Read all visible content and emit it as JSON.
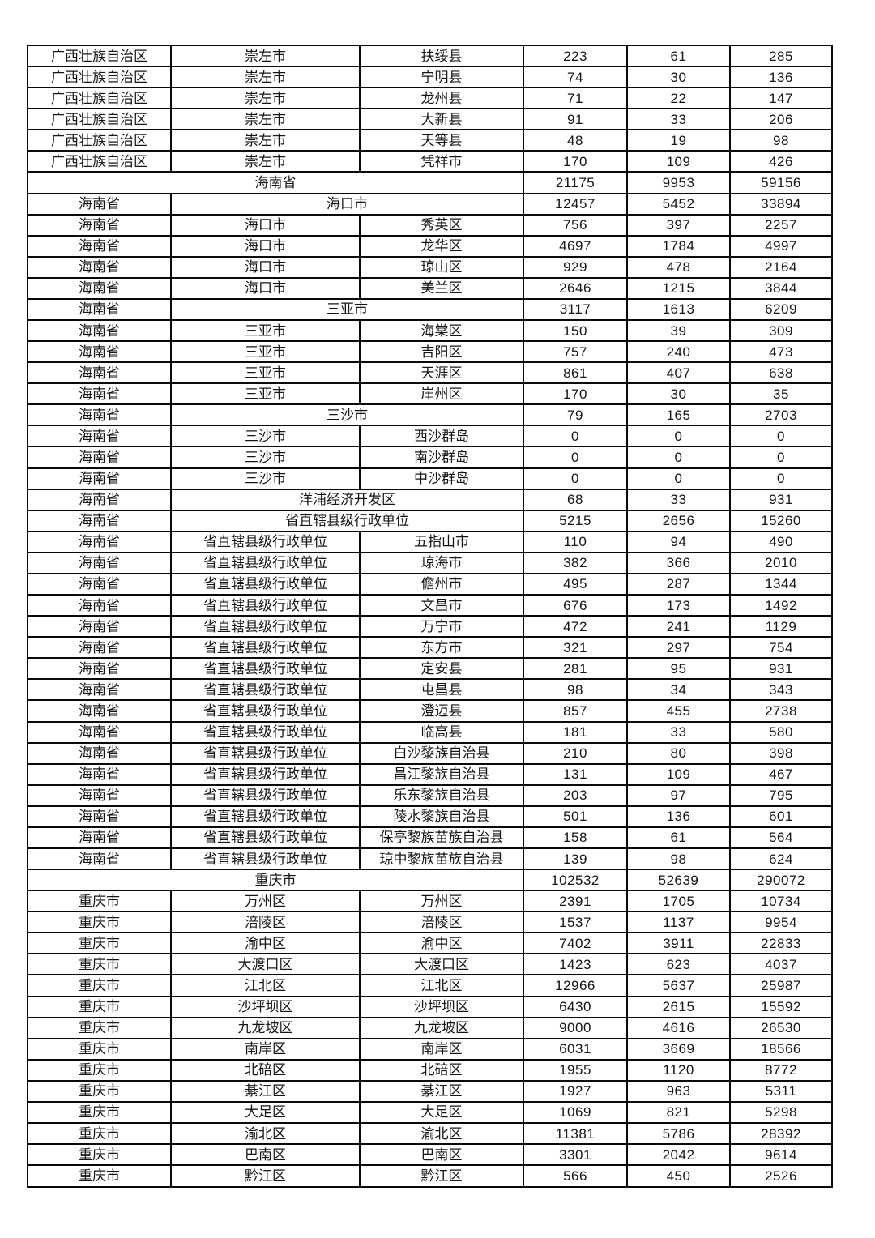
{
  "colors": {
    "page_background": "#ffffff",
    "border": "#0a0a0a",
    "text": "#151515"
  },
  "table": {
    "rows": [
      {
        "t": "p",
        "c": [
          "广西壮族自治区",
          "崇左市",
          "扶绥县",
          "223",
          "61",
          "285"
        ]
      },
      {
        "t": "p",
        "c": [
          "广西壮族自治区",
          "崇左市",
          "宁明县",
          "74",
          "30",
          "136"
        ]
      },
      {
        "t": "p",
        "c": [
          "广西壮族自治区",
          "崇左市",
          "龙州县",
          "71",
          "22",
          "147"
        ]
      },
      {
        "t": "p",
        "c": [
          "广西壮族自治区",
          "崇左市",
          "大新县",
          "91",
          "33",
          "206"
        ]
      },
      {
        "t": "p",
        "c": [
          "广西壮族自治区",
          "崇左市",
          "天等县",
          "48",
          "19",
          "98"
        ]
      },
      {
        "t": "p",
        "c": [
          "广西壮族自治区",
          "崇左市",
          "凭祥市",
          "170",
          "109",
          "426"
        ]
      },
      {
        "t": "m3",
        "c": [
          "海南省",
          "21175",
          "9953",
          "59156"
        ]
      },
      {
        "t": "m2",
        "c": [
          "海南省",
          "海口市",
          "12457",
          "5452",
          "33894"
        ]
      },
      {
        "t": "p",
        "c": [
          "海南省",
          "海口市",
          "秀英区",
          "756",
          "397",
          "2257"
        ]
      },
      {
        "t": "p",
        "c": [
          "海南省",
          "海口市",
          "龙华区",
          "4697",
          "1784",
          "4997"
        ]
      },
      {
        "t": "p",
        "c": [
          "海南省",
          "海口市",
          "琼山区",
          "929",
          "478",
          "2164"
        ]
      },
      {
        "t": "p",
        "c": [
          "海南省",
          "海口市",
          "美兰区",
          "2646",
          "1215",
          "3844"
        ]
      },
      {
        "t": "m2",
        "c": [
          "海南省",
          "三亚市",
          "3117",
          "1613",
          "6209"
        ]
      },
      {
        "t": "p",
        "c": [
          "海南省",
          "三亚市",
          "海棠区",
          "150",
          "39",
          "309"
        ]
      },
      {
        "t": "p",
        "c": [
          "海南省",
          "三亚市",
          "吉阳区",
          "757",
          "240",
          "473"
        ]
      },
      {
        "t": "p",
        "c": [
          "海南省",
          "三亚市",
          "天涯区",
          "861",
          "407",
          "638"
        ]
      },
      {
        "t": "p",
        "c": [
          "海南省",
          "三亚市",
          "崖州区",
          "170",
          "30",
          "35"
        ]
      },
      {
        "t": "m2",
        "c": [
          "海南省",
          "三沙市",
          "79",
          "165",
          "2703"
        ]
      },
      {
        "t": "p",
        "c": [
          "海南省",
          "三沙市",
          "西沙群岛",
          "0",
          "0",
          "0"
        ]
      },
      {
        "t": "p",
        "c": [
          "海南省",
          "三沙市",
          "南沙群岛",
          "0",
          "0",
          "0"
        ]
      },
      {
        "t": "p",
        "c": [
          "海南省",
          "三沙市",
          "中沙群岛",
          "0",
          "0",
          "0"
        ]
      },
      {
        "t": "m2",
        "c": [
          "海南省",
          "洋浦经济开发区",
          "68",
          "33",
          "931"
        ]
      },
      {
        "t": "m2",
        "c": [
          "海南省",
          "省直辖县级行政单位",
          "5215",
          "2656",
          "15260"
        ]
      },
      {
        "t": "p",
        "c": [
          "海南省",
          "省直辖县级行政单位",
          "五指山市",
          "110",
          "94",
          "490"
        ]
      },
      {
        "t": "p",
        "c": [
          "海南省",
          "省直辖县级行政单位",
          "琼海市",
          "382",
          "366",
          "2010"
        ]
      },
      {
        "t": "p",
        "c": [
          "海南省",
          "省直辖县级行政单位",
          "儋州市",
          "495",
          "287",
          "1344"
        ]
      },
      {
        "t": "p",
        "c": [
          "海南省",
          "省直辖县级行政单位",
          "文昌市",
          "676",
          "173",
          "1492"
        ]
      },
      {
        "t": "p",
        "c": [
          "海南省",
          "省直辖县级行政单位",
          "万宁市",
          "472",
          "241",
          "1129"
        ]
      },
      {
        "t": "p",
        "c": [
          "海南省",
          "省直辖县级行政单位",
          "东方市",
          "321",
          "297",
          "754"
        ]
      },
      {
        "t": "p",
        "c": [
          "海南省",
          "省直辖县级行政单位",
          "定安县",
          "281",
          "95",
          "931"
        ]
      },
      {
        "t": "p",
        "c": [
          "海南省",
          "省直辖县级行政单位",
          "屯昌县",
          "98",
          "34",
          "343"
        ]
      },
      {
        "t": "p",
        "c": [
          "海南省",
          "省直辖县级行政单位",
          "澄迈县",
          "857",
          "455",
          "2738"
        ]
      },
      {
        "t": "p",
        "c": [
          "海南省",
          "省直辖县级行政单位",
          "临高县",
          "181",
          "33",
          "580"
        ]
      },
      {
        "t": "p",
        "c": [
          "海南省",
          "省直辖县级行政单位",
          "白沙黎族自治县",
          "210",
          "80",
          "398"
        ]
      },
      {
        "t": "p",
        "c": [
          "海南省",
          "省直辖县级行政单位",
          "昌江黎族自治县",
          "131",
          "109",
          "467"
        ]
      },
      {
        "t": "p",
        "c": [
          "海南省",
          "省直辖县级行政单位",
          "乐东黎族自治县",
          "203",
          "97",
          "795"
        ]
      },
      {
        "t": "p",
        "c": [
          "海南省",
          "省直辖县级行政单位",
          "陵水黎族自治县",
          "501",
          "136",
          "601"
        ]
      },
      {
        "t": "p",
        "c": [
          "海南省",
          "省直辖县级行政单位",
          "保亭黎族苗族自治县",
          "158",
          "61",
          "564"
        ]
      },
      {
        "t": "p",
        "c": [
          "海南省",
          "省直辖县级行政单位",
          "琼中黎族苗族自治县",
          "139",
          "98",
          "624"
        ]
      },
      {
        "t": "m3",
        "c": [
          "重庆市",
          "102532",
          "52639",
          "290072"
        ]
      },
      {
        "t": "p",
        "c": [
          "重庆市",
          "万州区",
          "万州区",
          "2391",
          "1705",
          "10734"
        ]
      },
      {
        "t": "p",
        "c": [
          "重庆市",
          "涪陵区",
          "涪陵区",
          "1537",
          "1137",
          "9954"
        ]
      },
      {
        "t": "p",
        "c": [
          "重庆市",
          "渝中区",
          "渝中区",
          "7402",
          "3911",
          "22833"
        ]
      },
      {
        "t": "p",
        "c": [
          "重庆市",
          "大渡口区",
          "大渡口区",
          "1423",
          "623",
          "4037"
        ]
      },
      {
        "t": "p",
        "c": [
          "重庆市",
          "江北区",
          "江北区",
          "12966",
          "5637",
          "25987"
        ]
      },
      {
        "t": "p",
        "c": [
          "重庆市",
          "沙坪坝区",
          "沙坪坝区",
          "6430",
          "2615",
          "15592"
        ]
      },
      {
        "t": "p",
        "c": [
          "重庆市",
          "九龙坡区",
          "九龙坡区",
          "9000",
          "4616",
          "26530"
        ]
      },
      {
        "t": "p",
        "c": [
          "重庆市",
          "南岸区",
          "南岸区",
          "6031",
          "3669",
          "18566"
        ]
      },
      {
        "t": "p",
        "c": [
          "重庆市",
          "北碚区",
          "北碚区",
          "1955",
          "1120",
          "8772"
        ]
      },
      {
        "t": "p",
        "c": [
          "重庆市",
          "綦江区",
          "綦江区",
          "1927",
          "963",
          "5311"
        ]
      },
      {
        "t": "p",
        "c": [
          "重庆市",
          "大足区",
          "大足区",
          "1069",
          "821",
          "5298"
        ]
      },
      {
        "t": "p",
        "c": [
          "重庆市",
          "渝北区",
          "渝北区",
          "11381",
          "5786",
          "28392"
        ]
      },
      {
        "t": "p",
        "c": [
          "重庆市",
          "巴南区",
          "巴南区",
          "3301",
          "2042",
          "9614"
        ]
      },
      {
        "t": "p",
        "c": [
          "重庆市",
          "黔江区",
          "黔江区",
          "566",
          "450",
          "2526"
        ]
      }
    ]
  }
}
